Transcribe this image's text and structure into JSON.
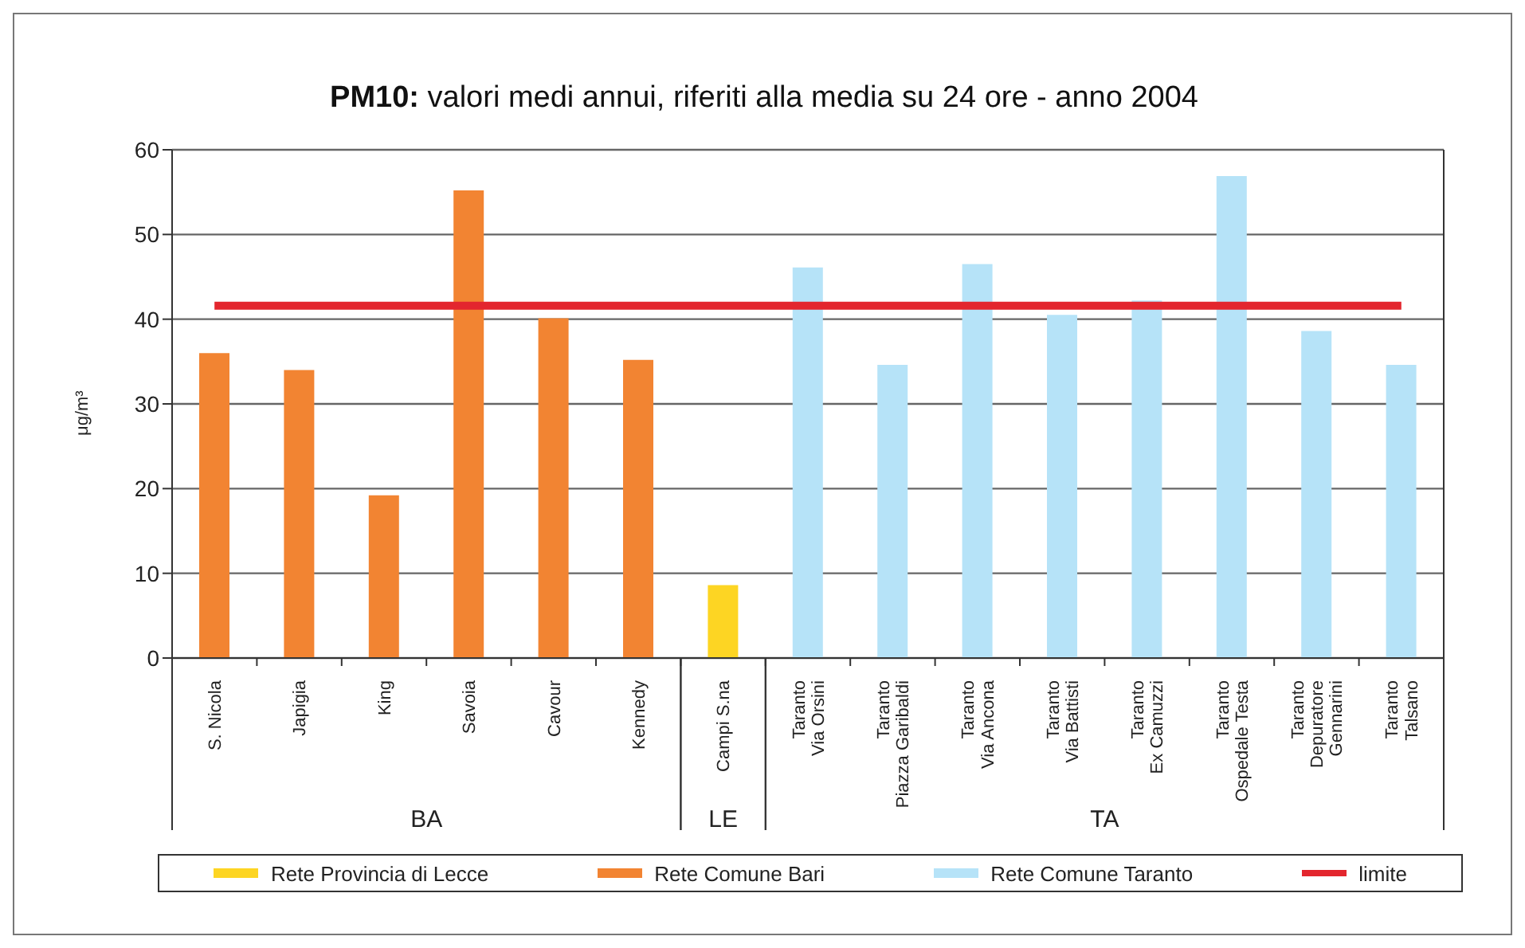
{
  "chart_data": {
    "type": "bar",
    "title": "PM10: valori medi annui, riferiti alla media su 24 ore - anno 2004",
    "ylabel": "μg/m³",
    "categories": [
      "S. Nicola",
      "Japigia",
      "King",
      "Savoia",
      "Cavour",
      "Kennedy",
      "Campi S.na",
      "Taranto\nVia Orsini",
      "Taranto\nPiazza Garibaldi",
      "Taranto\nVia Ancona",
      "Taranto\nVia Battisti",
      "Taranto\nEx Camuzzi",
      "Taranto\nOspedale Testa",
      "Taranto\nDepuratore\nGennarini",
      "Taranto\nTalsano"
    ],
    "stacked": true,
    "series": [
      {
        "name": "Rete Provincia di Lecce",
        "color": "#fdd523",
        "values": [
          null,
          null,
          null,
          null,
          null,
          null,
          8.6,
          null,
          null,
          null,
          null,
          null,
          null,
          null,
          null
        ]
      },
      {
        "name": "Rete Comune Bari",
        "color": "#f28432",
        "values": [
          36,
          34,
          19.2,
          55.2,
          40.1,
          35.2,
          null,
          null,
          null,
          null,
          null,
          null,
          null,
          null,
          null
        ]
      },
      {
        "name": "Rete Comune Taranto",
        "color": "#b6e3f8",
        "values": [
          null,
          null,
          null,
          null,
          null,
          null,
          null,
          46.1,
          34.6,
          46.5,
          40.5,
          42.2,
          56.9,
          38.6,
          34.6
        ]
      },
      {
        "name": "limite",
        "type": "line",
        "color": "#e3262e",
        "values": [
          41.6,
          41.6,
          41.6,
          41.6,
          41.6,
          41.6,
          41.6,
          41.6,
          41.6,
          41.6,
          41.6,
          41.6,
          41.6,
          41.6,
          41.6
        ]
      }
    ],
    "annotations": [
      "BA",
      "LE",
      "TA"
    ],
    "ylim": [
      0,
      60
    ],
    "yticks": [
      0,
      10,
      20,
      30,
      40,
      50,
      60
    ],
    "grid": "y",
    "legend": "bottom",
    "marker": "none"
  }
}
